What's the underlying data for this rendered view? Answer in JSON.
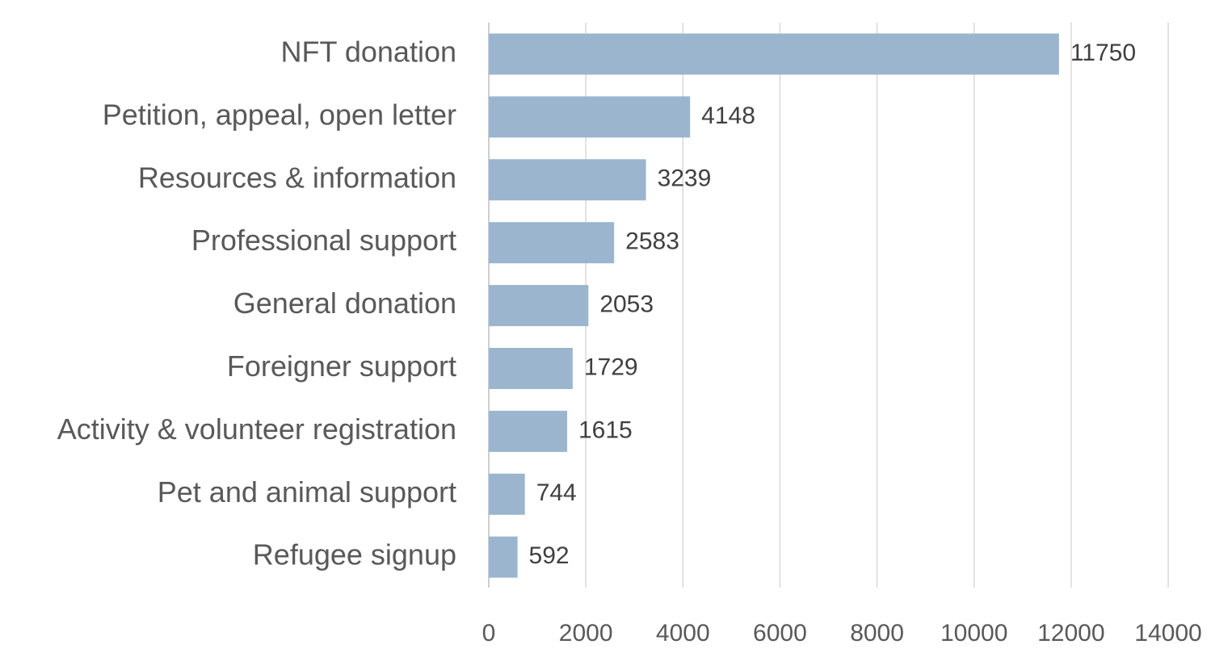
{
  "chart_data": {
    "type": "bar",
    "orientation": "horizontal",
    "title": "",
    "xlabel": "",
    "ylabel": "",
    "categories": [
      "NFT donation",
      "Petition, appeal, open letter",
      "Resources & information",
      "Professional support",
      "General donation",
      "Foreigner support",
      "Activity & volunteer registration",
      "Pet and animal support",
      "Refugee signup"
    ],
    "values": [
      11750,
      4148,
      3239,
      2583,
      2053,
      1729,
      1615,
      744,
      592
    ],
    "value_labels": [
      "11750",
      "4148",
      "3239",
      "2583",
      "2053",
      "1729",
      "1615",
      "744",
      "592"
    ],
    "xlim": [
      0,
      14000
    ],
    "x_ticks": [
      0,
      2000,
      4000,
      6000,
      8000,
      10000,
      12000,
      14000
    ],
    "x_tick_labels": [
      "0",
      "2000",
      "4000",
      "6000",
      "8000",
      "10000",
      "12000",
      "14000"
    ],
    "grid": "vertical",
    "legend": "none",
    "bar_color": "#9bb5cf",
    "grid_color": "#d9d9d9"
  }
}
